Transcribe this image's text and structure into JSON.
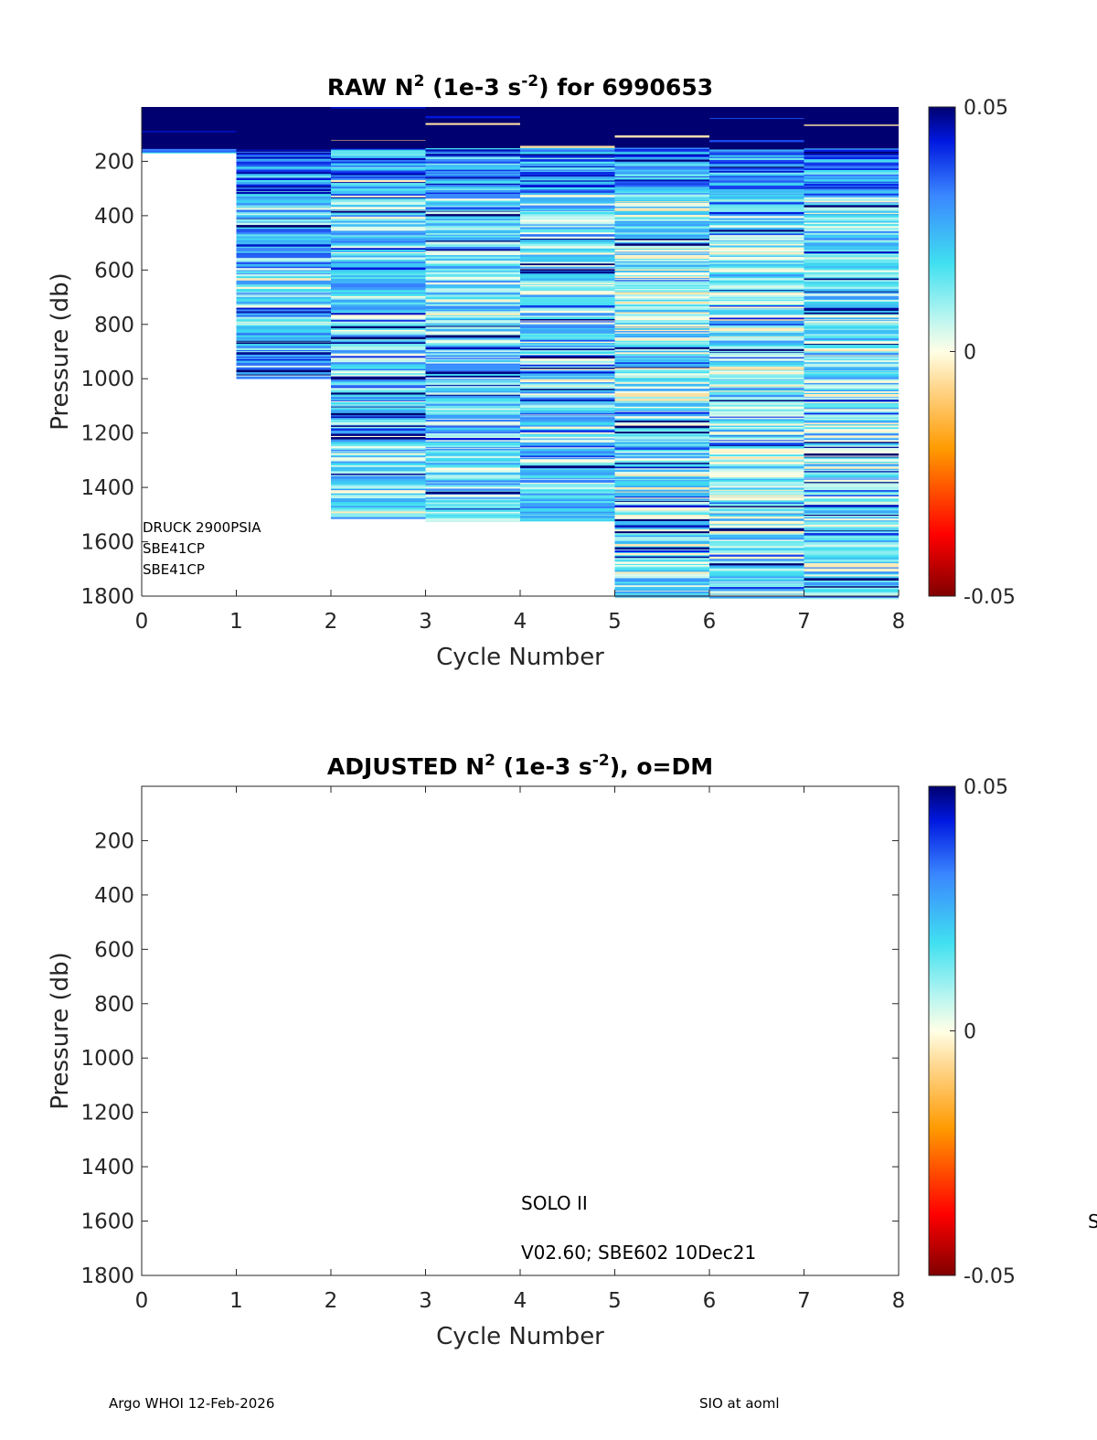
{
  "chart_data": [
    {
      "type": "heatmap",
      "title": {
        "prefix": "RAW N",
        "sup1": "2",
        "mid": " (1e-3 s",
        "sup2": "-2",
        "suffix": ") for 6990653"
      },
      "xlabel": "Cycle Number",
      "ylabel": "Pressure (db)",
      "xlim": [
        0,
        8
      ],
      "ylim": [
        0,
        1800
      ],
      "y_reversed": true,
      "xticks": [
        "0",
        "1",
        "2",
        "3",
        "4",
        "5",
        "6",
        "7",
        "8"
      ],
      "yticks": [
        {
          "value": 200,
          "label": "200"
        },
        {
          "value": 400,
          "label": "400"
        },
        {
          "value": 600,
          "label": "600"
        },
        {
          "value": 800,
          "label": "800"
        },
        {
          "value": 1000,
          "label": "1000"
        },
        {
          "value": 1200,
          "label": "1200"
        },
        {
          "value": 1400,
          "label": "1400"
        },
        {
          "value": 1600,
          "label": "1600"
        },
        {
          "value": 1800,
          "label": "1800"
        }
      ],
      "colorbar": {
        "min": -0.05,
        "max": 0.05,
        "tick_labels": [
          "0.05",
          "0",
          "-0.05"
        ],
        "tick_values": [
          0.05,
          0,
          -0.05
        ]
      },
      "profiles": [
        {
          "cycle": 1,
          "pmax": 170,
          "seed": 11,
          "deep_mean": 0.012
        },
        {
          "cycle": 2,
          "pmax": 1000,
          "seed": 23,
          "deep_mean": 0.02
        },
        {
          "cycle": 3,
          "pmax": 1515,
          "seed": 37,
          "deep_mean": 0.016
        },
        {
          "cycle": 4,
          "pmax": 1525,
          "seed": 41,
          "deep_mean": 0.017
        },
        {
          "cycle": 5,
          "pmax": 1525,
          "seed": 53,
          "deep_mean": 0.016
        },
        {
          "cycle": 6,
          "pmax": 1810,
          "seed": 67,
          "deep_mean": 0.012
        },
        {
          "cycle": 7,
          "pmax": 1810,
          "seed": 71,
          "deep_mean": 0.012
        },
        {
          "cycle": 8,
          "pmax": 1810,
          "seed": 83,
          "deep_mean": 0.014
        }
      ],
      "annotations": [
        "DRUCK 2900PSIA",
        "SBE41CP",
        "SBE41CP"
      ]
    },
    {
      "type": "heatmap",
      "title": {
        "prefix": "ADJUSTED N",
        "sup1": "2",
        "mid": " (1e-3 s",
        "sup2": "-2",
        "suffix": "), o=DM"
      },
      "xlabel": "Cycle Number",
      "ylabel": "Pressure (db)",
      "xlim": [
        0,
        8
      ],
      "ylim": [
        0,
        1800
      ],
      "y_reversed": true,
      "xticks": [
        "0",
        "1",
        "2",
        "3",
        "4",
        "5",
        "6",
        "7",
        "8"
      ],
      "yticks": [
        {
          "value": 200,
          "label": "200"
        },
        {
          "value": 400,
          "label": "400"
        },
        {
          "value": 600,
          "label": "600"
        },
        {
          "value": 800,
          "label": "800"
        },
        {
          "value": 1000,
          "label": "1000"
        },
        {
          "value": 1200,
          "label": "1200"
        },
        {
          "value": 1400,
          "label": "1400"
        },
        {
          "value": 1600,
          "label": "1600"
        },
        {
          "value": 1800,
          "label": "1800"
        }
      ],
      "colorbar": {
        "min": -0.05,
        "max": 0.05,
        "tick_labels": [
          "0.05",
          "0",
          "-0.05"
        ],
        "tick_values": [
          0.05,
          0,
          -0.05
        ]
      },
      "profiles": [],
      "annotations": [
        "SOLO II",
        "V02.60; SBE602 10Dec21"
      ]
    }
  ],
  "footer": {
    "left": "Argo WHOI 12-Feb-2026",
    "right": "SIO at aoml",
    "edge": "S"
  }
}
